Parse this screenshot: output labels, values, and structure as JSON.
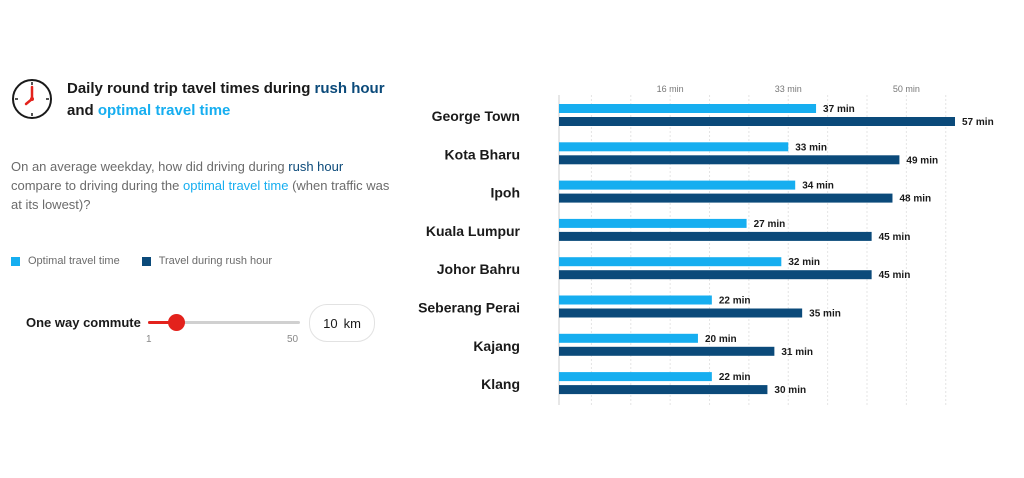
{
  "header": {
    "title_part1": "Daily round trip tavel times during ",
    "title_rush": "rush hour",
    "title_part2": " and ",
    "title_optimal": "optimal travel time",
    "icon": "clock-icon"
  },
  "question": {
    "part1": "On an average weekday, how did driving during ",
    "rush": "rush hour",
    "part2": " compare to driving during the ",
    "optimal": "optimal travel time",
    "part3": " (when traffic was at its lowest)?"
  },
  "legend": {
    "optimal_label": "Optimal travel time",
    "rush_label": "Travel during rush hour"
  },
  "commute": {
    "label": "One way commute",
    "min_label": "1",
    "max_label": "50",
    "min": 1,
    "max": 50,
    "value": 10,
    "value_text": "10",
    "unit": "km"
  },
  "colors": {
    "optimal": "#16aef0",
    "rush": "#0b4a7a",
    "accent": "#e3221c"
  },
  "chart_data": {
    "type": "bar",
    "orientation": "horizontal",
    "categories": [
      "George Town",
      "Kota Bharu",
      "Ipoh",
      "Kuala Lumpur",
      "Johor Bahru",
      "Seberang Perai",
      "Kajang",
      "Klang"
    ],
    "series": [
      {
        "name": "Optimal travel time",
        "values": [
          37,
          33,
          34,
          27,
          32,
          22,
          20,
          22
        ],
        "labels": [
          "37 min",
          "33 min",
          "34 min",
          "27 min",
          "32 min",
          "22 min",
          "20 min",
          "22 min"
        ]
      },
      {
        "name": "Travel during rush hour",
        "values": [
          57,
          49,
          48,
          45,
          45,
          35,
          31,
          30
        ],
        "labels": [
          "57 min",
          "49 min",
          "48 min",
          "45 min",
          "45 min",
          "35 min",
          "31 min",
          "30 min"
        ]
      }
    ],
    "ticks": [
      16,
      33,
      50
    ],
    "tick_labels": [
      "16 min",
      "33 min",
      "50 min"
    ],
    "xlim": [
      0,
      57
    ],
    "grid": true
  }
}
